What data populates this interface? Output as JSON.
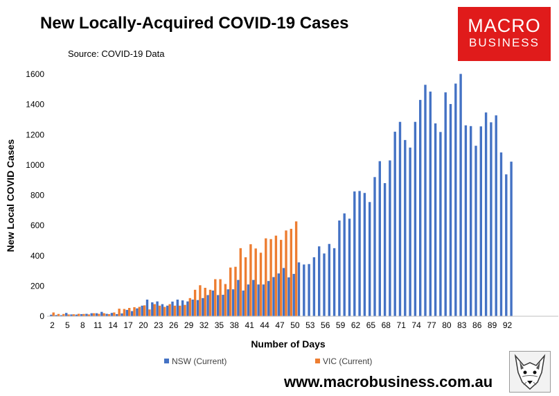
{
  "title": "New Locally-Acquired COVID-19 Cases",
  "subtitle": "Source: COVID-19 Data",
  "logo": {
    "line1": "MACRO",
    "line2": "BUSINESS",
    "color": "#e01b1b"
  },
  "website": "www.macrobusiness.com.au",
  "chart_data": {
    "type": "bar",
    "xlabel": "Number of Days",
    "ylabel": "New Local COVID Cases",
    "ylim": [
      0,
      1600
    ],
    "yticks": [
      0,
      200,
      400,
      600,
      800,
      1000,
      1200,
      1400,
      1600
    ],
    "xticks": [
      2,
      5,
      8,
      11,
      14,
      17,
      20,
      23,
      26,
      29,
      32,
      35,
      38,
      41,
      44,
      47,
      50,
      53,
      56,
      59,
      62,
      65,
      68,
      71,
      74,
      77,
      80,
      83,
      86,
      89,
      92
    ],
    "x_start": 2,
    "legend_position": "bottom",
    "grid": false,
    "series": [
      {
        "name": "NSW (Current)",
        "color": "#4472c4",
        "values": [
          10,
          8,
          7,
          22,
          12,
          11,
          14,
          16,
          20,
          20,
          29,
          16,
          22,
          14,
          19,
          42,
          34,
          52,
          70,
          110,
          92,
          98,
          80,
          70,
          97,
          110,
          105,
          98,
          110,
          107,
          120,
          140,
          170,
          140,
          142,
          178,
          178,
          240,
          170,
          210,
          240,
          210,
          210,
          233,
          259,
          283,
          319,
          257,
          280,
          356,
          342,
          345,
          390,
          462,
          415,
          478,
          450,
          633,
          680,
          645,
          825,
          828,
          815,
          755,
          920,
          1025,
          880,
          1030,
          1220,
          1285,
          1165,
          1115,
          1285,
          1430,
          1530,
          1485,
          1275,
          1218,
          1480,
          1403,
          1538,
          1602,
          1262,
          1257,
          1127,
          1255,
          1347,
          1282,
          1328,
          1083,
          938,
          1022
        ]
      },
      {
        "name": "VIC (Current)",
        "color": "#ed7d31",
        "values": [
          25,
          15,
          15,
          12,
          13,
          16,
          15,
          12,
          20,
          16,
          20,
          14,
          25,
          50,
          48,
          55,
          60,
          62,
          72,
          45,
          80,
          70,
          62,
          80,
          70,
          70,
          75,
          120,
          175,
          205,
          188,
          175,
          245,
          245,
          213,
          322,
          327,
          450,
          390,
          476,
          448,
          420,
          515,
          510,
          533,
          505,
          567,
          578,
          627
        ]
      }
    ]
  }
}
